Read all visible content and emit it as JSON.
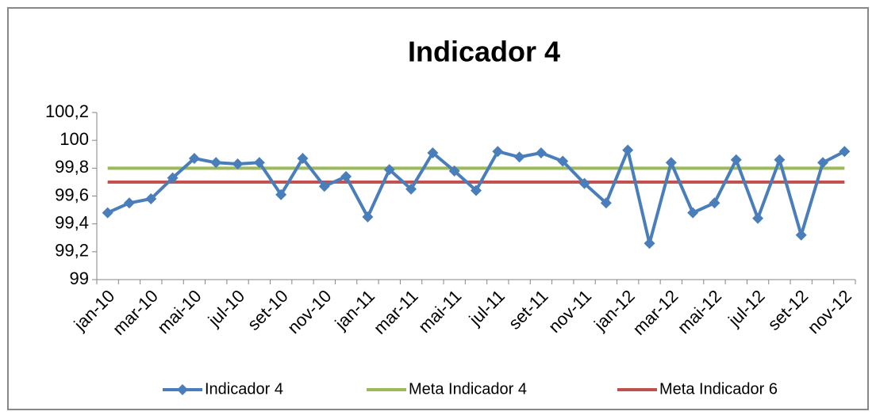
{
  "chart_data": {
    "type": "line",
    "title": "Indicador 4",
    "categories": [
      "jan-10",
      null,
      "mar-10",
      null,
      "mai-10",
      null,
      "jul-10",
      null,
      "set-10",
      null,
      "nov-10",
      null,
      "jan-11",
      null,
      "mar-11",
      null,
      "mai-11",
      null,
      "jul-11",
      null,
      "set-11",
      null,
      "nov-11",
      null,
      "jan-12",
      null,
      "mar-12",
      null,
      "mai-12",
      null,
      "jul-12",
      null,
      "set-12",
      null,
      "nov-12"
    ],
    "series": [
      {
        "name": "Indicador 4",
        "color": "#4a7ebb",
        "marker": "diamond",
        "values": [
          99.48,
          99.55,
          99.58,
          99.73,
          99.87,
          99.84,
          99.83,
          99.84,
          99.61,
          99.87,
          99.67,
          99.74,
          99.45,
          99.79,
          99.65,
          99.91,
          99.78,
          99.64,
          99.92,
          99.88,
          99.91,
          99.85,
          99.69,
          99.55,
          99.93,
          99.26,
          99.84,
          99.48,
          99.55,
          99.86,
          99.44,
          99.86,
          99.32,
          99.84,
          99.92
        ]
      },
      {
        "name": "Meta Indicador 4",
        "color": "#9bbb59",
        "values": [
          99.8,
          99.8,
          99.8,
          99.8,
          99.8,
          99.8,
          99.8,
          99.8,
          99.8,
          99.8,
          99.8,
          99.8,
          99.8,
          99.8,
          99.8,
          99.8,
          99.8,
          99.8,
          99.8,
          99.8,
          99.8,
          99.8,
          99.8,
          99.8,
          99.8,
          99.8,
          99.8,
          99.8,
          99.8,
          99.8,
          99.8,
          99.8,
          99.8,
          99.8,
          99.8
        ]
      },
      {
        "name": "Meta Indicador 6",
        "color": "#c0504d",
        "values": [
          99.7,
          99.7,
          99.7,
          99.7,
          99.7,
          99.7,
          99.7,
          99.7,
          99.7,
          99.7,
          99.7,
          99.7,
          99.7,
          99.7,
          99.7,
          99.7,
          99.7,
          99.7,
          99.7,
          99.7,
          99.7,
          99.7,
          99.7,
          99.7,
          99.7,
          99.7,
          99.7,
          99.7,
          99.7,
          99.7,
          99.7,
          99.7,
          99.7,
          99.7,
          99.7
        ]
      }
    ],
    "ylim": [
      99,
      100.2
    ],
    "yticks": [
      99,
      {
        "value": 99.2,
        "label": "99,2"
      },
      {
        "value": 99.4,
        "label": "99,4"
      },
      {
        "value": 99.6,
        "label": "99,6"
      },
      {
        "value": 99.8,
        "label": "99,8"
      },
      100,
      {
        "value": 100.2,
        "label": "100,2"
      }
    ],
    "grid": false,
    "legend": "bottom"
  }
}
